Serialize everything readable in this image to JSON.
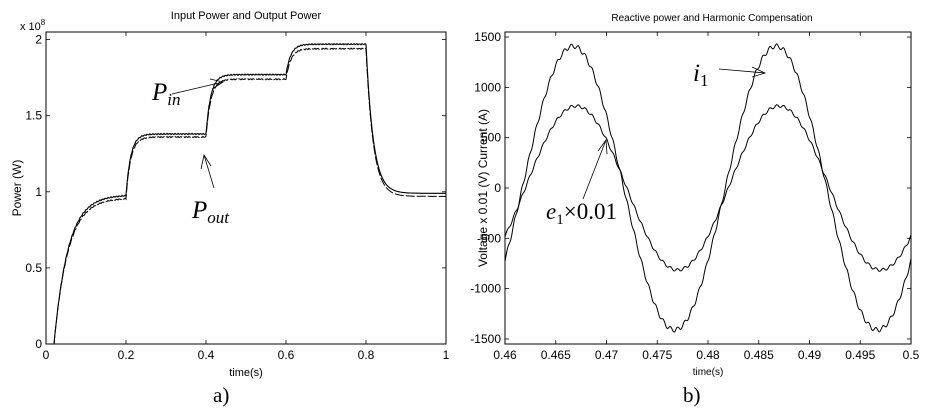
{
  "chart_data": [
    {
      "type": "line",
      "title": "Input Power and Output Power",
      "xlabel": "time(s)",
      "ylabel": "Power (W)",
      "y_exponent": "x 10",
      "y_exponent_power": "8",
      "xlim": [
        0,
        1
      ],
      "ylim": [
        0,
        2.05
      ],
      "x_ticks": [
        "0",
        "0.2",
        "0.4",
        "0.6",
        "0.8",
        "1"
      ],
      "y_ticks": [
        "0",
        "0.5",
        "1",
        "1.5",
        "2"
      ],
      "grid": false,
      "series": [
        {
          "name": "Pin",
          "levels": [
            [
              0.2,
              0.98
            ],
            [
              0.4,
              1.38
            ],
            [
              0.6,
              1.77
            ],
            [
              0.8,
              1.97
            ],
            [
              1.0,
              0.99
            ]
          ]
        },
        {
          "name": "Pout",
          "levels": [
            [
              0.2,
              0.96
            ],
            [
              0.4,
              1.36
            ],
            [
              0.6,
              1.74
            ],
            [
              0.8,
              1.94
            ],
            [
              1.0,
              0.97
            ]
          ]
        }
      ],
      "annotations": {
        "pin": "P",
        "pin_sub": "in",
        "pout": "P",
        "pout_sub": "out"
      },
      "panel_label": "a)"
    },
    {
      "type": "line",
      "title": "Reactive power and Harmonic Compensation",
      "xlabel": "time(s)",
      "ylabel": "Voltage x 0.01 (V) Current (A)",
      "xlim": [
        0.46,
        0.5
      ],
      "ylim": [
        -1550,
        1550
      ],
      "x_ticks": [
        "0.46",
        "0.465",
        "0.47",
        "0.475",
        "0.48",
        "0.485",
        "0.49",
        "0.495",
        "0.5"
      ],
      "y_ticks": [
        "-1500",
        "-1000",
        "-500",
        "0",
        "500",
        "1000",
        "1500"
      ],
      "grid": false,
      "series": [
        {
          "name": "i1",
          "amplitude": 1410,
          "frequency_hz": 50,
          "peak_time": 0.4667
        },
        {
          "name": "e1x0.01",
          "amplitude": 815,
          "frequency_hz": 50,
          "peak_time": 0.467
        }
      ],
      "annotations": {
        "i1": "i",
        "i1_sub": "1",
        "e1": "e",
        "e1_sub": "1",
        "e1_rest": "×0.01"
      },
      "panel_label": "b)"
    }
  ]
}
